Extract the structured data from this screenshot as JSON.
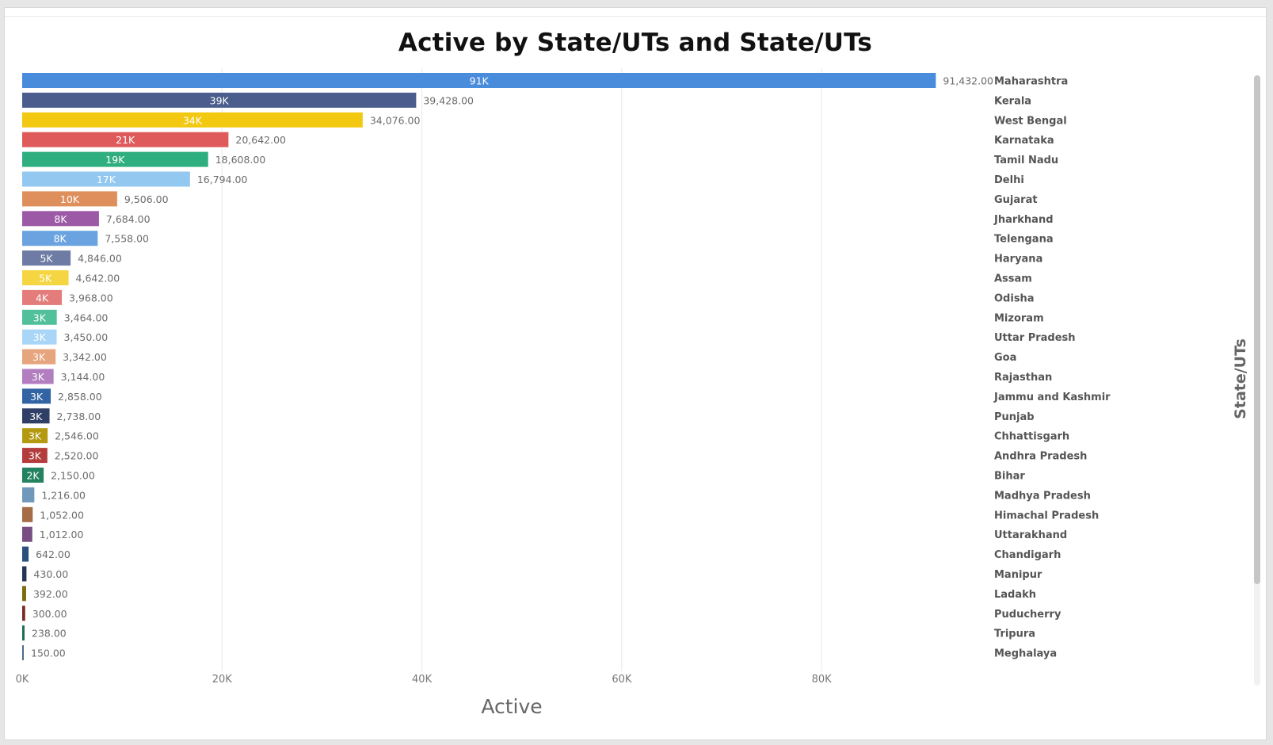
{
  "chart_data": {
    "type": "bar",
    "orientation": "horizontal",
    "title": "Active by State/UTs and State/UTs",
    "xlabel": "Active",
    "ylabel": "State/UTs",
    "xlim": [
      0,
      96000
    ],
    "xticks": [
      {
        "value": 0,
        "label": "0K"
      },
      {
        "value": 20000,
        "label": "20K"
      },
      {
        "value": 40000,
        "label": "40K"
      },
      {
        "value": 60000,
        "label": "60K"
      },
      {
        "value": 80000,
        "label": "80K"
      }
    ],
    "grid": true,
    "category_labels_position": "right",
    "categories": [
      "Maharashtra",
      "Kerala",
      "West Bengal",
      "Karnataka",
      "Tamil Nadu",
      "Delhi",
      "Gujarat",
      "Jharkhand",
      "Telengana",
      "Haryana",
      "Assam",
      "Odisha",
      "Mizoram",
      "Uttar Pradesh",
      "Goa",
      "Rajasthan",
      "Jammu and Kashmir",
      "Punjab",
      "Chhattisgarh",
      "Andhra Pradesh",
      "Bihar",
      "Madhya Pradesh",
      "Himachal Pradesh",
      "Uttarakhand",
      "Chandigarh",
      "Manipur",
      "Ladakh",
      "Puducherry",
      "Tripura",
      "Meghalaya"
    ],
    "values": [
      91432,
      39428,
      34076,
      20642,
      18608,
      16794,
      9506,
      7684,
      7558,
      4846,
      4642,
      3968,
      3464,
      3450,
      3342,
      3144,
      2858,
      2738,
      2546,
      2520,
      2150,
      1216,
      1052,
      1012,
      642,
      430,
      392,
      300,
      238,
      150
    ],
    "inner_labels": [
      "91K",
      "39K",
      "34K",
      "21K",
      "19K",
      "17K",
      "10K",
      "8K",
      "8K",
      "5K",
      "5K",
      "4K",
      "3K",
      "3K",
      "3K",
      "3K",
      "3K",
      "3K",
      "3K",
      "3K",
      "2K",
      "",
      "",
      "",
      "",
      "",
      "",
      "",
      "",
      ""
    ],
    "value_labels": [
      "91,432.00",
      "39,428.00",
      "34,076.00",
      "20,642.00",
      "18,608.00",
      "16,794.00",
      "9,506.00",
      "7,684.00",
      "7,558.00",
      "4,846.00",
      "4,642.00",
      "3,968.00",
      "3,464.00",
      "3,450.00",
      "3,342.00",
      "3,144.00",
      "2,858.00",
      "2,738.00",
      "2,546.00",
      "2,520.00",
      "2,150.00",
      "1,216.00",
      "1,052.00",
      "1,012.00",
      "642.00",
      "430.00",
      "392.00",
      "300.00",
      "238.00",
      "150.00"
    ],
    "colors": [
      "#4a8cdc",
      "#4b5d8c",
      "#f2c811",
      "#df5a5a",
      "#2fae80",
      "#93c8f0",
      "#df8f5c",
      "#9c5aa6",
      "#6aa3e0",
      "#6e7ba4",
      "#f5d642",
      "#e47c7c",
      "#52c19b",
      "#a9d6f6",
      "#e6a57d",
      "#b27ec0",
      "#3264a4",
      "#2f3f66",
      "#b49a10",
      "#b33c3c",
      "#23825f",
      "#7098bb",
      "#a56c45",
      "#774d82",
      "#2d4f7c",
      "#283655",
      "#7c6c0d",
      "#7c2a2a",
      "#1e6e50",
      "#4a6d8c"
    ]
  }
}
